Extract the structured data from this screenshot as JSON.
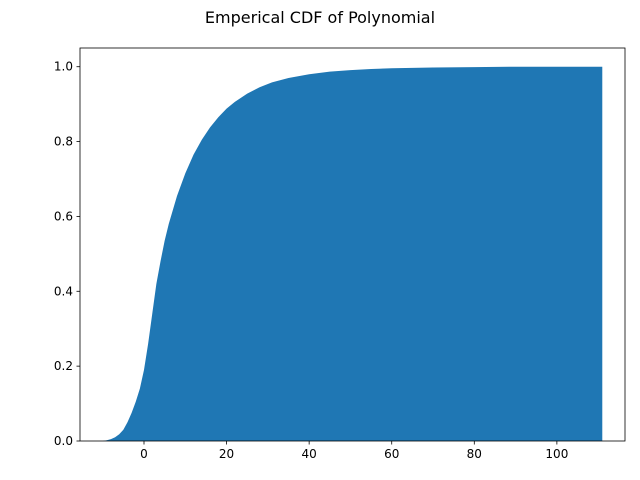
{
  "chart_data": {
    "type": "area",
    "title": "Emperical CDF of Polynomial",
    "xlabel": "",
    "ylabel": "",
    "xlim": [
      -15.5,
      116.5
    ],
    "ylim": [
      0.0,
      1.05
    ],
    "xticks": [
      0,
      20,
      40,
      60,
      80,
      100
    ],
    "xtick_labels": [
      "0",
      "20",
      "40",
      "60",
      "80",
      "100"
    ],
    "yticks": [
      0.0,
      0.2,
      0.4,
      0.6,
      0.8,
      1.0
    ],
    "ytick_labels": [
      "0.0",
      "0.2",
      "0.4",
      "0.6",
      "0.8",
      "1.0"
    ],
    "grid": false,
    "fill_color": "#1f77b4",
    "series": [
      {
        "x": [
          -10,
          -9,
          -8,
          -7,
          -6,
          -5,
          -4,
          -3,
          -2,
          -1,
          0,
          1,
          2,
          3,
          4,
          5,
          6,
          8,
          10,
          12,
          14,
          16,
          18,
          20,
          22,
          25,
          28,
          31,
          35,
          40,
          45,
          50,
          55,
          60,
          70,
          80,
          90,
          100,
          111
        ],
        "y": [
          0.0,
          0.002,
          0.005,
          0.01,
          0.018,
          0.03,
          0.05,
          0.075,
          0.105,
          0.14,
          0.19,
          0.26,
          0.34,
          0.42,
          0.48,
          0.535,
          0.58,
          0.655,
          0.715,
          0.765,
          0.805,
          0.838,
          0.865,
          0.888,
          0.906,
          0.928,
          0.945,
          0.958,
          0.97,
          0.98,
          0.987,
          0.991,
          0.994,
          0.996,
          0.998,
          0.999,
          1.0,
          1.0,
          1.0
        ]
      }
    ]
  }
}
